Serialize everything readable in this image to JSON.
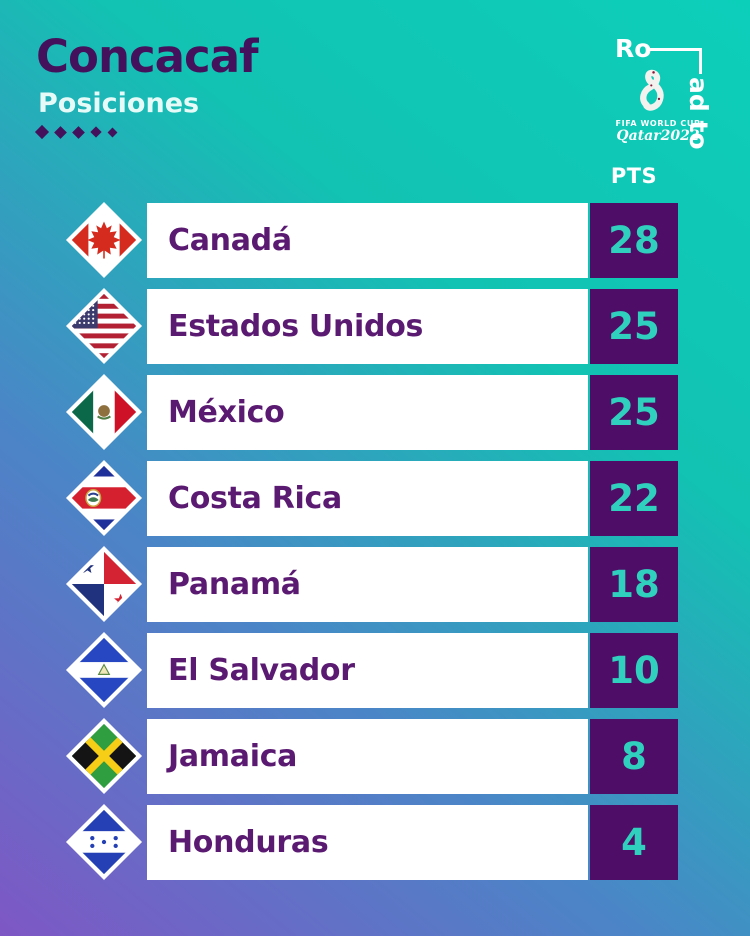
{
  "header": {
    "title": "Concacaf",
    "subtitle": "Posiciones"
  },
  "logo": {
    "road_to_horizontal": "Ro",
    "road_to_vertical": "ad to",
    "world_cup_line1": "FIFA WORLD CUP",
    "world_cup_line2": "Qatar2022"
  },
  "table": {
    "pts_header": "PTS",
    "rows": [
      {
        "team": "Canadá",
        "pts": "28",
        "flag": "canada"
      },
      {
        "team": "Estados Unidos",
        "pts": "25",
        "flag": "usa"
      },
      {
        "team": "México",
        "pts": "25",
        "flag": "mexico"
      },
      {
        "team": "Costa Rica",
        "pts": "22",
        "flag": "costa-rica"
      },
      {
        "team": "Panamá",
        "pts": "18",
        "flag": "panama"
      },
      {
        "team": "El Salvador",
        "pts": "10",
        "flag": "el-salvador"
      },
      {
        "team": "Jamaica",
        "pts": "8",
        "flag": "jamaica"
      },
      {
        "team": "Honduras",
        "pts": "4",
        "flag": "honduras"
      }
    ]
  },
  "chart_data": {
    "type": "table",
    "title": "Concacaf Posiciones",
    "pts_label": "PTS",
    "categories": [
      "Canadá",
      "Estados Unidos",
      "México",
      "Costa Rica",
      "Panamá",
      "El Salvador",
      "Jamaica",
      "Honduras"
    ],
    "values": [
      28,
      25,
      25,
      22,
      18,
      10,
      8,
      4
    ]
  },
  "colors": {
    "bg-teal": "#0ccfba",
    "bg-blue": "#4a86c7",
    "bg-purple": "#7e57c5",
    "title-purple": "#44125c",
    "team-purple": "#5b1a72",
    "pts-box-purple": "#4e0d66",
    "pts-teal": "#2fd1be",
    "subtitle-white": "#e6fbf8"
  }
}
